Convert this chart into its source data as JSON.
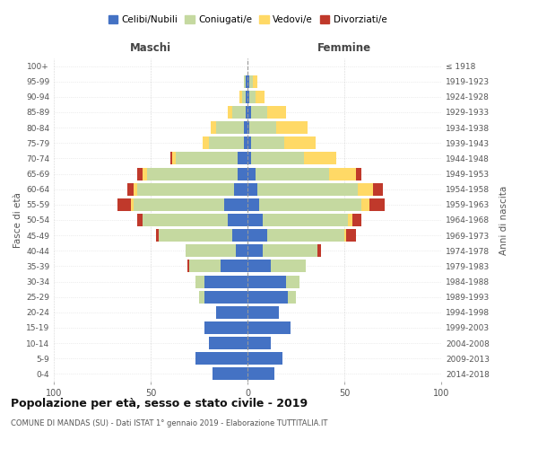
{
  "age_groups": [
    "0-4",
    "5-9",
    "10-14",
    "15-19",
    "20-24",
    "25-29",
    "30-34",
    "35-39",
    "40-44",
    "45-49",
    "50-54",
    "55-59",
    "60-64",
    "65-69",
    "70-74",
    "75-79",
    "80-84",
    "85-89",
    "90-94",
    "95-99",
    "100+"
  ],
  "birth_years": [
    "2014-2018",
    "2009-2013",
    "2004-2008",
    "1999-2003",
    "1994-1998",
    "1989-1993",
    "1984-1988",
    "1979-1983",
    "1974-1978",
    "1969-1973",
    "1964-1968",
    "1959-1963",
    "1954-1958",
    "1949-1953",
    "1944-1948",
    "1939-1943",
    "1934-1938",
    "1929-1933",
    "1924-1928",
    "1919-1923",
    "≤ 1918"
  ],
  "males": {
    "celibi": [
      18,
      27,
      20,
      22,
      16,
      22,
      22,
      14,
      6,
      8,
      10,
      12,
      7,
      5,
      5,
      2,
      2,
      1,
      1,
      1,
      0
    ],
    "coniugati": [
      0,
      0,
      0,
      0,
      0,
      3,
      5,
      16,
      26,
      38,
      44,
      47,
      50,
      47,
      32,
      18,
      14,
      7,
      2,
      1,
      0
    ],
    "vedovi": [
      0,
      0,
      0,
      0,
      0,
      0,
      0,
      0,
      0,
      0,
      0,
      1,
      2,
      2,
      2,
      3,
      3,
      2,
      1,
      0,
      0
    ],
    "divorziati": [
      0,
      0,
      0,
      0,
      0,
      0,
      0,
      1,
      0,
      1,
      3,
      7,
      3,
      3,
      1,
      0,
      0,
      0,
      0,
      0,
      0
    ]
  },
  "females": {
    "nubili": [
      14,
      18,
      12,
      22,
      16,
      21,
      20,
      12,
      8,
      10,
      8,
      6,
      5,
      4,
      2,
      2,
      1,
      2,
      1,
      1,
      0
    ],
    "coniugate": [
      0,
      0,
      0,
      0,
      0,
      4,
      7,
      18,
      28,
      40,
      44,
      53,
      52,
      38,
      27,
      17,
      14,
      8,
      3,
      2,
      0
    ],
    "vedove": [
      0,
      0,
      0,
      0,
      0,
      0,
      0,
      0,
      0,
      1,
      2,
      4,
      8,
      14,
      17,
      16,
      16,
      10,
      5,
      2,
      0
    ],
    "divorziate": [
      0,
      0,
      0,
      0,
      0,
      0,
      0,
      0,
      2,
      5,
      5,
      8,
      5,
      3,
      0,
      0,
      0,
      0,
      0,
      0,
      0
    ]
  },
  "colors": {
    "celibi": "#4472c4",
    "coniugati": "#c5d9a0",
    "vedovi": "#ffd966",
    "divorziati": "#c0392b"
  },
  "xlim": 100,
  "title": "Popolazione per età, sesso e stato civile - 2019",
  "subtitle": "COMUNE DI MANDAS (SU) - Dati ISTAT 1° gennaio 2019 - Elaborazione TUTTITALIA.IT",
  "ylabel_left": "Fasce di età",
  "ylabel_right": "Anni di nascita",
  "xlabel_left": "Maschi",
  "xlabel_right": "Femmine",
  "legend_labels": [
    "Celibi/Nubili",
    "Coniugati/e",
    "Vedovi/e",
    "Divorziati/e"
  ],
  "background_color": "#ffffff",
  "grid_color": "#bbbbbb"
}
